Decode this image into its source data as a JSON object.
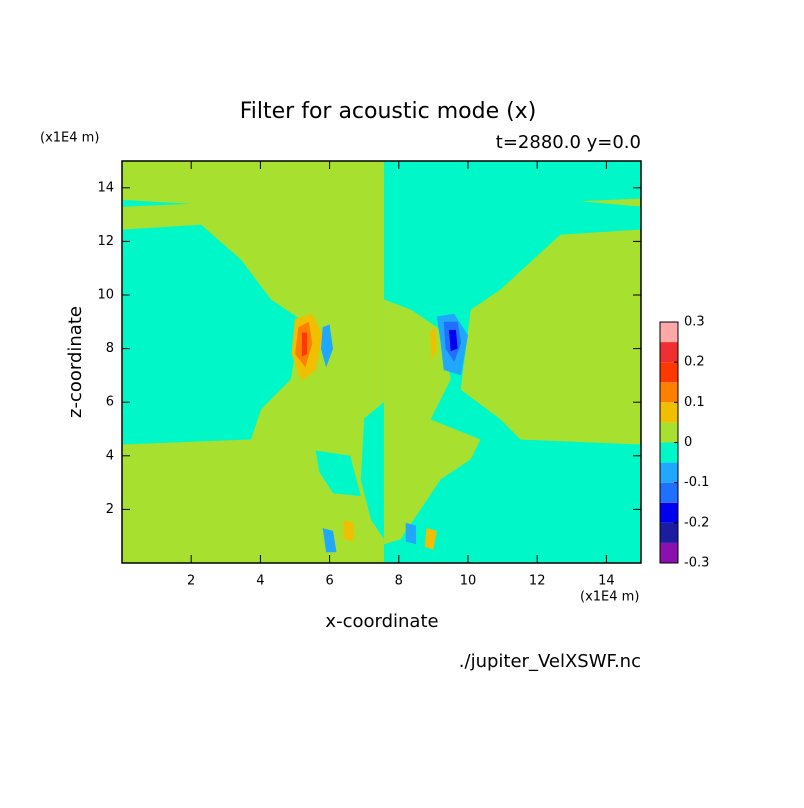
{
  "chart_data": {
    "type": "contour",
    "title": "Filter for acoustic mode (x)",
    "subtitle": "t=2880.0 y=0.0",
    "x_label": "x-coordinate",
    "y_label": "z-coordinate",
    "x_unit": "(x1E4 m)",
    "y_unit": "(x1E4 m)",
    "source": "./jupiter_VelXSWF.nc",
    "xlim": [
      0,
      15
    ],
    "ylim": [
      0,
      15
    ],
    "xticks": [
      2,
      4,
      6,
      8,
      10,
      12,
      14
    ],
    "yticks": [
      2,
      4,
      6,
      8,
      10,
      12,
      14
    ],
    "levels": [
      -0.3,
      -0.25,
      -0.2,
      -0.15,
      -0.1,
      -0.05,
      0,
      0.05,
      0.1,
      0.15,
      0.2,
      0.25,
      0.3
    ],
    "colors": [
      "#8c10b0",
      "#1c1ca0",
      "#0000f0",
      "#2070ff",
      "#20a8ff",
      "#00f8c8",
      "#a8e030",
      "#f0c000",
      "#ff8000",
      "#ff3800",
      "#f03030",
      "#ffa8a8"
    ],
    "colorbar_ticks": [
      -0.3,
      -0.2,
      -0.1,
      0,
      0.1,
      0.2,
      0.3
    ],
    "background_level": 0,
    "regions": [
      {
        "level": -0.05,
        "points": [
          [
            0,
            12.44
          ],
          [
            2.29,
            12.62
          ],
          [
            3.44,
            11.32
          ],
          [
            4.31,
            9.83
          ],
          [
            5.17,
            9.08
          ],
          [
            4.88,
            6.85
          ],
          [
            4.02,
            5.73
          ],
          [
            3.73,
            4.61
          ],
          [
            0,
            4.42
          ]
        ]
      },
      {
        "level": -0.05,
        "points": [
          [
            0,
            13.55
          ],
          [
            1.99,
            13.4
          ],
          [
            0,
            13.29
          ]
        ]
      },
      {
        "level": -0.05,
        "points": [
          [
            7.57,
            15
          ],
          [
            15,
            15
          ],
          [
            15,
            12.44
          ],
          [
            12.67,
            12.25
          ],
          [
            10.94,
            10.2
          ],
          [
            10.08,
            9.45
          ],
          [
            9.79,
            6.47
          ],
          [
            10.94,
            5.36
          ],
          [
            11.52,
            4.61
          ],
          [
            15,
            4.42
          ],
          [
            15,
            0
          ],
          [
            7.57,
            0
          ]
        ]
      },
      {
        "level": 0,
        "points": [
          [
            15,
            13.6
          ],
          [
            13.25,
            13.5
          ],
          [
            15,
            13.3
          ]
        ]
      },
      {
        "level": 0,
        "points": [
          [
            7.57,
            9.83
          ],
          [
            8.35,
            9.45
          ],
          [
            9.21,
            8.71
          ],
          [
            9.5,
            6.85
          ],
          [
            8.92,
            5.36
          ],
          [
            10.36,
            4.61
          ],
          [
            10.08,
            3.87
          ],
          [
            9.21,
            3.12
          ],
          [
            8.63,
            2.0
          ],
          [
            8.05,
            0.88
          ],
          [
            7.57,
            0.7
          ]
        ]
      },
      {
        "level": -0.05,
        "points": [
          [
            7.57,
            6.0
          ],
          [
            7.0,
            5.4
          ],
          [
            6.9,
            3.1
          ],
          [
            7.2,
            1.6
          ],
          [
            7.57,
            0.9
          ]
        ]
      },
      {
        "level": -0.05,
        "points": [
          [
            5.6,
            4.2
          ],
          [
            6.6,
            4.0
          ],
          [
            6.9,
            2.5
          ],
          [
            6.1,
            2.6
          ],
          [
            5.7,
            3.4
          ]
        ]
      },
      {
        "level": 0.05,
        "points": [
          [
            5.0,
            9.1
          ],
          [
            5.5,
            9.3
          ],
          [
            5.8,
            8.5
          ],
          [
            5.6,
            7.2
          ],
          [
            5.2,
            6.8
          ],
          [
            4.9,
            7.8
          ]
        ]
      },
      {
        "level": 0.1,
        "points": [
          [
            5.1,
            8.8
          ],
          [
            5.4,
            9.0
          ],
          [
            5.5,
            8.2
          ],
          [
            5.3,
            7.3
          ],
          [
            5.0,
            7.8
          ]
        ]
      },
      {
        "level": 0.15,
        "points": [
          [
            5.2,
            8.6
          ],
          [
            5.35,
            8.6
          ],
          [
            5.35,
            7.8
          ],
          [
            5.2,
            7.7
          ]
        ]
      },
      {
        "level": -0.1,
        "points": [
          [
            5.8,
            8.8
          ],
          [
            6.0,
            8.9
          ],
          [
            6.1,
            8.0
          ],
          [
            5.9,
            7.3
          ],
          [
            5.75,
            8.0
          ]
        ]
      },
      {
        "level": -0.1,
        "points": [
          [
            9.1,
            9.2
          ],
          [
            9.6,
            9.3
          ],
          [
            10.0,
            8.5
          ],
          [
            9.8,
            7.0
          ],
          [
            9.3,
            7.2
          ],
          [
            9.2,
            8.3
          ]
        ]
      },
      {
        "level": -0.15,
        "points": [
          [
            9.3,
            9.0
          ],
          [
            9.7,
            9.0
          ],
          [
            9.8,
            8.2
          ],
          [
            9.6,
            7.5
          ],
          [
            9.35,
            8.0
          ]
        ]
      },
      {
        "level": -0.2,
        "points": [
          [
            9.45,
            8.7
          ],
          [
            9.65,
            8.7
          ],
          [
            9.7,
            8.0
          ],
          [
            9.5,
            7.9
          ]
        ]
      },
      {
        "level": 0.05,
        "points": [
          [
            8.9,
            8.6
          ],
          [
            9.05,
            8.8
          ],
          [
            9.1,
            8.0
          ],
          [
            8.95,
            7.5
          ]
        ]
      },
      {
        "level": -0.1,
        "points": [
          [
            5.8,
            1.3
          ],
          [
            6.1,
            1.2
          ],
          [
            6.2,
            0.4
          ],
          [
            5.9,
            0.4
          ]
        ]
      },
      {
        "level": 0.05,
        "points": [
          [
            6.4,
            1.6
          ],
          [
            6.7,
            1.5
          ],
          [
            6.7,
            0.8
          ],
          [
            6.4,
            0.9
          ]
        ]
      },
      {
        "level": -0.1,
        "points": [
          [
            8.2,
            1.5
          ],
          [
            8.5,
            1.4
          ],
          [
            8.5,
            0.7
          ],
          [
            8.2,
            0.8
          ]
        ]
      },
      {
        "level": 0.05,
        "points": [
          [
            8.8,
            1.3
          ],
          [
            9.1,
            1.2
          ],
          [
            9.0,
            0.5
          ],
          [
            8.75,
            0.6
          ]
        ]
      }
    ]
  }
}
